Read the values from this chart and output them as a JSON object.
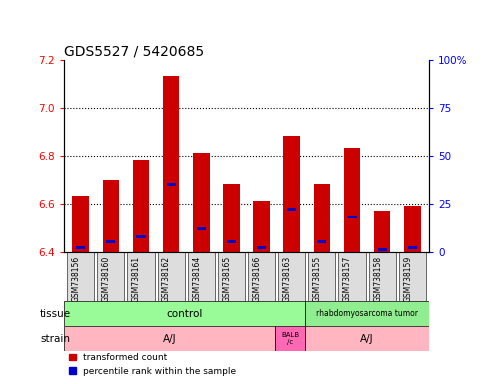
{
  "title": "GDS5527 / 5420685",
  "samples": [
    "GSM738156",
    "GSM738160",
    "GSM738161",
    "GSM738162",
    "GSM738164",
    "GSM738165",
    "GSM738166",
    "GSM738163",
    "GSM738155",
    "GSM738157",
    "GSM738158",
    "GSM738159"
  ],
  "red_values": [
    6.63,
    6.7,
    6.78,
    7.13,
    6.81,
    6.68,
    6.61,
    6.88,
    6.68,
    6.83,
    6.57,
    6.59
  ],
  "blue_values": [
    2.0,
    5.0,
    8.0,
    35.0,
    12.0,
    5.0,
    2.0,
    22.0,
    5.0,
    18.0,
    1.0,
    2.0
  ],
  "ylim_left": [
    6.4,
    7.2
  ],
  "ylim_right": [
    0,
    100
  ],
  "yticks_left": [
    6.4,
    6.6,
    6.8,
    7.0,
    7.2
  ],
  "yticks_right": [
    0,
    25,
    50,
    75,
    100
  ],
  "base_value": 6.4,
  "bar_color_red": "#CC0000",
  "bar_color_blue": "#0000CC",
  "tissue_control_color": "#98FB98",
  "tissue_tumor_color": "#90EE90",
  "strain_aj_color": "#FFB6C1",
  "strain_balb_color": "#FF69B4",
  "tick_fontsize": 7.5,
  "label_fontsize": 7.5,
  "sample_fontsize": 5.5
}
